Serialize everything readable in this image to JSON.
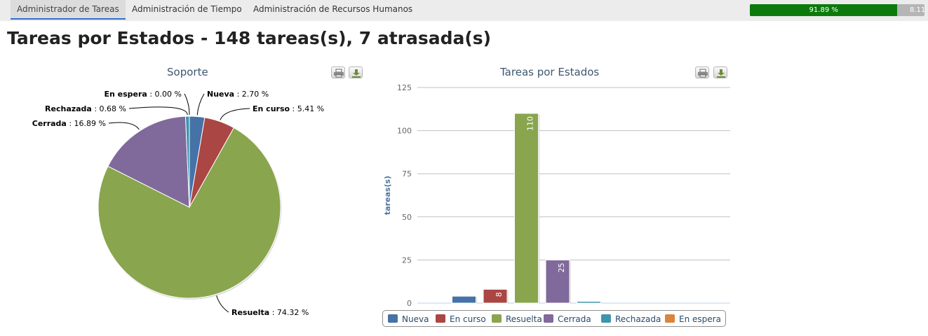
{
  "nav": {
    "tabs": [
      {
        "label": "Administrador de Tareas",
        "active": true
      },
      {
        "label": "Administración de Tiempo",
        "active": false
      },
      {
        "label": "Administración de Recursos Humanos",
        "active": false
      }
    ],
    "progress": {
      "label": "91.89 %",
      "value": 91.89,
      "rest_label": "8.11",
      "fill_color": "#0b7a0b"
    }
  },
  "page_title": "Tareas por Estados - 148 tareas(s), 7 atrasada(s)",
  "colors": {
    "Nueva": "#4572a7",
    "En curso": "#aa4643",
    "Resuelta": "#89a54e",
    "Cerrada": "#80699b",
    "Rechazada": "#3d96ae",
    "En espera": "#db843d"
  },
  "chart_data": [
    {
      "type": "pie",
      "title": "Soporte",
      "slices": [
        {
          "name": "Nueva",
          "value": 2.7,
          "label": "2.70 %"
        },
        {
          "name": "En curso",
          "value": 5.41,
          "label": "5.41 %"
        },
        {
          "name": "Resuelta",
          "value": 74.32,
          "label": "74.32 %"
        },
        {
          "name": "Cerrada",
          "value": 16.89,
          "label": "16.89 %"
        },
        {
          "name": "Rechazada",
          "value": 0.68,
          "label": "0.68 %"
        },
        {
          "name": "En espera",
          "value": 0.0,
          "label": "0.00 %"
        }
      ]
    },
    {
      "type": "bar",
      "title": "Tareas por Estados",
      "ylabel": "tareas(s)",
      "ylim": [
        0,
        125
      ],
      "yticks": [
        0,
        25,
        50,
        75,
        100,
        125
      ],
      "legend_position": "bottom",
      "series": [
        {
          "name": "Nueva",
          "value": 4,
          "show_label": false
        },
        {
          "name": "En curso",
          "value": 8,
          "show_label": true
        },
        {
          "name": "Resuelta",
          "value": 110,
          "show_label": true
        },
        {
          "name": "Cerrada",
          "value": 25,
          "show_label": true
        },
        {
          "name": "Rechazada",
          "value": 1,
          "show_label": false
        },
        {
          "name": "En espera",
          "value": 0,
          "show_label": false
        }
      ]
    }
  ]
}
